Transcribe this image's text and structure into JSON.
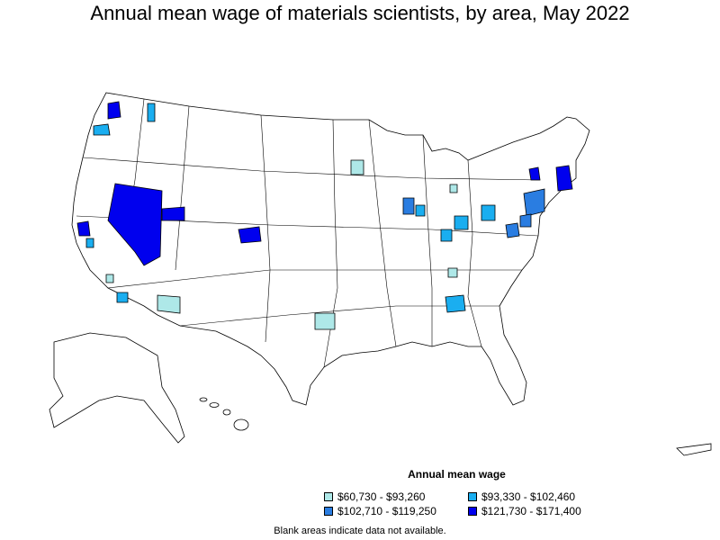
{
  "title": "Annual mean wage of materials scientists, by area, May 2022",
  "legend": {
    "title": "Annual mean wage",
    "items": [
      {
        "label": "$60,730 - $93,260",
        "color": "#aee8e8"
      },
      {
        "label": "$93,330 - $102,460",
        "color": "#1aaef0"
      },
      {
        "label": "$102,710 - $119,250",
        "color": "#2a7de1"
      },
      {
        "label": "$121,730 - $171,400",
        "color": "#0000ee"
      }
    ]
  },
  "footnote": "Blank areas indicate data not available."
}
